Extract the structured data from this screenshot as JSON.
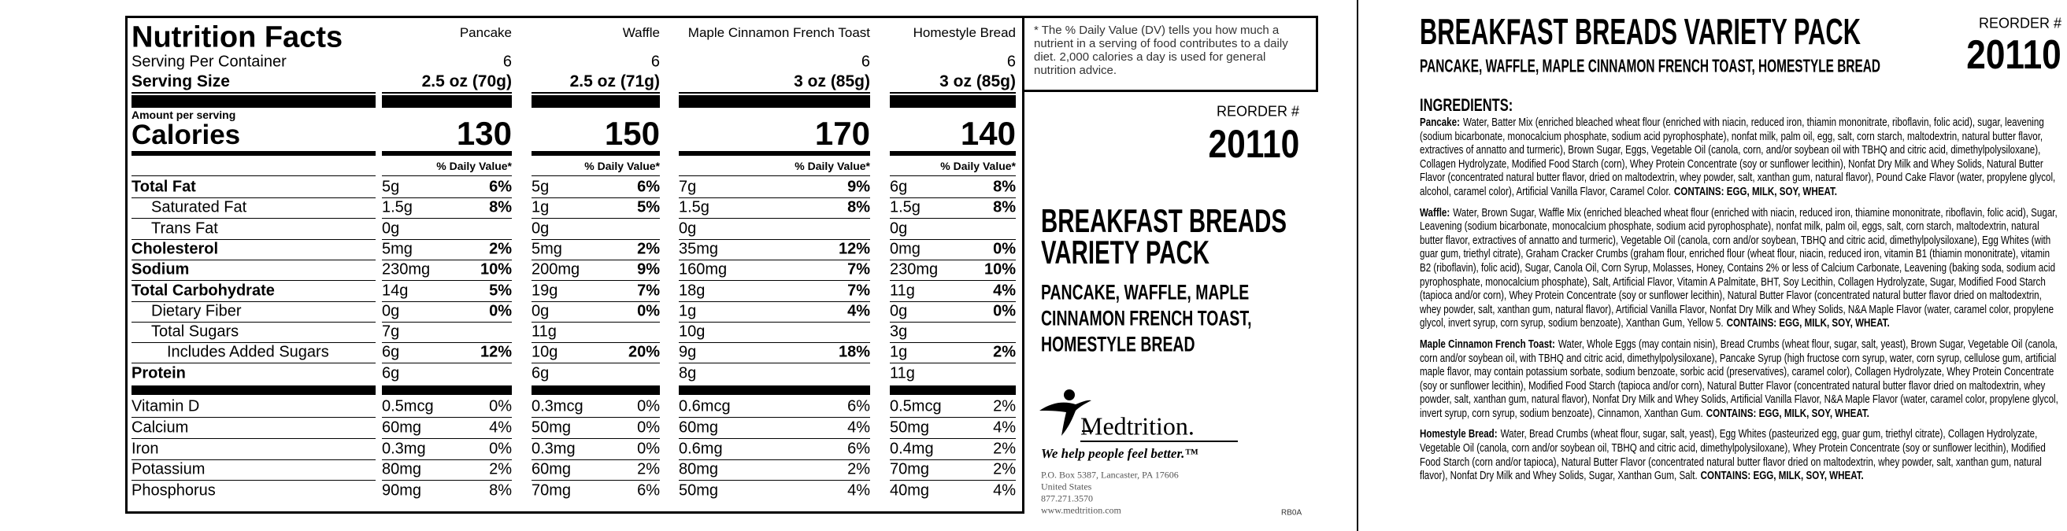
{
  "left_panel": {
    "nutrition_facts": {
      "title": "Nutrition Facts",
      "servings_label": "Serving Per Container",
      "serving_size_label": "Serving Size",
      "amount_label": "Amount per serving",
      "calories_label": "Calories",
      "daily_value_header": "% Daily Value*",
      "products": [
        {
          "name": "Pancake",
          "servings": 6,
          "serving_size": "2.5 oz (70g)",
          "calories": 130
        },
        {
          "name": "Waffle",
          "servings": 6,
          "serving_size": "2.5 oz (71g)",
          "calories": 150
        },
        {
          "name": "Maple Cinnamon French Toast",
          "servings": 6,
          "serving_size": "3 oz (85g)",
          "calories": 170
        },
        {
          "name": "Homestyle Bread",
          "servings": 6,
          "serving_size": "3 oz (85g)",
          "calories": 140
        }
      ],
      "nutrients": [
        {
          "label": "Total Fat",
          "values": [
            [
              "5g",
              "6%"
            ],
            [
              "5g",
              "6%"
            ],
            [
              "7g",
              "9%"
            ],
            [
              "6g",
              "8%"
            ]
          ]
        },
        {
          "label": "Saturated Fat",
          "values": [
            [
              "1.5g",
              "8%"
            ],
            [
              "1g",
              "5%"
            ],
            [
              "1.5g",
              "8%"
            ],
            [
              "1.5g",
              "8%"
            ]
          ]
        },
        {
          "label": "Trans Fat",
          "values": [
            [
              "0g"
            ],
            [
              "0g"
            ],
            [
              "0g"
            ],
            [
              "0g"
            ]
          ]
        },
        {
          "label": "Cholesterol",
          "values": [
            [
              "5mg",
              "2%"
            ],
            [
              "5mg",
              "2%"
            ],
            [
              "35mg",
              "12%"
            ],
            [
              "0mg",
              "0%"
            ]
          ]
        },
        {
          "label": "Sodium",
          "values": [
            [
              "230mg",
              "10%"
            ],
            [
              "200mg",
              "9%"
            ],
            [
              "160mg",
              "7%"
            ],
            [
              "230mg",
              "10%"
            ]
          ]
        },
        {
          "label": "Total Carbohydrate",
          "values": [
            [
              "14g",
              "5%"
            ],
            [
              "19g",
              "7%"
            ],
            [
              "18g",
              "7%"
            ],
            [
              "11g",
              "4%"
            ]
          ]
        },
        {
          "label": "Dietary Fiber",
          "values": [
            [
              "0g",
              "0%"
            ],
            [
              "0g",
              "0%"
            ],
            [
              "1g",
              "4%"
            ],
            [
              "0g",
              "0%"
            ]
          ]
        },
        {
          "label": "Total Sugars",
          "values": [
            [
              "7g"
            ],
            [
              "11g"
            ],
            [
              "10g"
            ],
            [
              "3g"
            ]
          ]
        },
        {
          "label": "Includes Added Sugars",
          "values": [
            [
              "6g",
              "12%"
            ],
            [
              "10g",
              "20%"
            ],
            [
              "9g",
              "18%"
            ],
            [
              "1g",
              "2%"
            ]
          ]
        },
        {
          "label": "Protein",
          "values": [
            [
              "6g"
            ],
            [
              "6g"
            ],
            [
              "8g"
            ],
            [
              "11g"
            ]
          ]
        }
      ],
      "vitamins_minerals": [
        {
          "label": "Vitamin D",
          "values": [
            [
              "0.5mcg",
              "0%"
            ],
            [
              "0.3mcg",
              "0%"
            ],
            [
              "0.6mcg",
              "6%"
            ],
            [
              "0.5mcg",
              "2%"
            ]
          ]
        },
        {
          "label": "Calcium",
          "values": [
            [
              "60mg",
              "4%"
            ],
            [
              "50mg",
              "0%"
            ],
            [
              "60mg",
              "4%"
            ],
            [
              "50mg",
              "4%"
            ]
          ]
        },
        {
          "label": "Iron",
          "values": [
            [
              "0.3mg",
              "0%"
            ],
            [
              "0.3mg",
              "0%"
            ],
            [
              "0.6mg",
              "6%"
            ],
            [
              "0.4mg",
              "2%"
            ]
          ]
        },
        {
          "label": "Potassium",
          "values": [
            [
              "80mg",
              "2%"
            ],
            [
              "60mg",
              "2%"
            ],
            [
              "80mg",
              "2%"
            ],
            [
              "70mg",
              "2%"
            ]
          ]
        },
        {
          "label": "Phosphorus",
          "values": [
            [
              "90mg",
              "8%"
            ],
            [
              "70mg",
              "6%"
            ],
            [
              "50mg",
              "4%"
            ],
            [
              "40mg",
              "4%"
            ]
          ]
        }
      ]
    },
    "disclaimer": "* The % Daily Value (DV) tells you how much a nutrient in a serving of food contributes to a daily diet. 2,000 calories a day is used for general nutrition advice.",
    "reorder_label": "REORDER #",
    "reorder_number": 20110,
    "title_lines": [
      "BREAKFAST BREADS",
      "VARIETY PACK"
    ],
    "subtitle_lines": [
      "PANCAKE, WAFFLE, MAPLE",
      "CINNAMON FRENCH TOAST,",
      "HOMESTYLE BREAD"
    ],
    "logo": {
      "name": "Medtrition.",
      "tagline": "We help people feel better.™"
    },
    "address_lines": [
      "P.O. Box 5387, Lancaster, PA 17606",
      "United States",
      "877.271.3570",
      "www.medtrition.com"
    ],
    "code": "RB0A"
  },
  "right_panel": {
    "title": "BREAKFAST BREADS VARIETY PACK",
    "subtitle": "PANCAKE, WAFFLE, MAPLE CINNAMON FRENCH TOAST, HOMESTYLE BREAD",
    "reorder_label": "REORDER #",
    "reorder_number": 20110,
    "ingredients_heading": "INGREDIENTS:",
    "ingredients": [
      {
        "name": "Pancake:",
        "text": "Water, Batter Mix (enriched bleached wheat flour (enriched with niacin, reduced iron, thiamin mononitrate, riboflavin, folic acid), sugar, leavening (sodium bicarbonate, monocalcium phosphate, sodium acid pyrophosphate), nonfat milk, palm oil, egg, salt, corn starch, maltodextrin, natural butter flavor, extractives of annatto and turmeric), Brown Sugar, Eggs, Vegetable Oil (canola, corn, and/or soybean oil with TBHQ and citric acid, dimethylpolysiloxane), Collagen Hydrolyzate, Modified Food Starch (corn), Whey Protein Concentrate (soy or sunflower lecithin), Nonfat Dry Milk and Whey Solids, Natural Butter Flavor (concentrated natural butter flavor, dried on maltodextrin, whey powder, salt, xanthan gum, natural flavor), Pound Cake Flavor (water, propylene glycol, alcohol, caramel color), Artificial Vanilla Flavor, Caramel Color.",
        "allergens": "CONTAINS: EGG, MILK, SOY, WHEAT."
      },
      {
        "name": "Waffle:",
        "text": "Water, Brown Sugar, Waffle Mix (enriched bleached wheat flour (enriched with niacin, reduced iron, thiamine mononitrate, riboflavin, folic acid), Sugar, Leavening (sodium bicarbonate, monocalcium phosphate, sodium acid pyrophosphate), nonfat milk, palm oil, eggs, salt, corn starch, maltodextrin, natural butter flavor, extractives of annatto and turmeric), Vegetable Oil (canola, corn and/or soybean, TBHQ and citric acid, dimethylpolysiloxane), Egg Whites (with guar gum, triethyl citrate), Graham Cracker Crumbs (graham flour, enriched flour (wheat flour, niacin, reduced iron, vitamin B1 (thiamin mononitrate), vitamin B2 (riboflavin), folic acid), Sugar, Canola Oil, Corn Syrup, Molasses, Honey, Contains 2% or less of Calcium Carbonate, Leavening (baking soda, sodium acid pyrophosphate, monocalcium phosphate), Salt, Artificial Flavor, Vitamin A Palmitate, BHT, Soy Lecithin, Collagen Hydrolyzate, Sugar, Modified Food Starch (tapioca and/or corn), Whey Protein Concentrate (soy or sunflower lecithin), Natural Butter Flavor (concentrated natural butter flavor dried on maltodextrin, whey powder, salt, xanthan gum, natural flavor), Artificial Vanilla Flavor, Nonfat Dry Milk and Whey Solids, N&A Maple Flavor (water, caramel color, propylene glycol, invert syrup, corn syrup, sodium benzoate), Xanthan Gum, Yellow 5.",
        "allergens": "CONTAINS: EGG, MILK, SOY, WHEAT."
      },
      {
        "name": "Maple Cinnamon French Toast:",
        "text": "Water, Whole Eggs (may contain nisin), Bread Crumbs (wheat flour, sugar, salt, yeast), Brown Sugar, Vegetable Oil (canola, corn and/or soybean oil, with TBHQ and citric acid, dimethylpolysiloxane), Pancake Syrup (high fructose corn syrup, water, corn syrup, cellulose gum, artificial maple flavor, may contain potassium sorbate, sodium benzoate, sorbic acid (preservatives), caramel color), Collagen Hydrolyzate, Whey Protein Concentrate (soy or sunflower lecithin), Modified Food Starch (tapioca and/or corn), Natural Butter Flavor (concentrated natural butter flavor dried on maltodextrin, whey powder, salt, xanthan gum, natural flavor), Nonfat Dry Milk and Whey Solids, Artificial Vanilla Flavor, N&A Maple Flavor (water, caramel color, propylene glycol, invert syrup, corn syrup, sodium benzoate), Cinnamon, Xanthan Gum.",
        "allergens": "CONTAINS: EGG, MILK, SOY, WHEAT."
      },
      {
        "name": "Homestyle Bread:",
        "text": "Water, Bread Crumbs (wheat flour, sugar, salt, yeast), Egg Whites (pasteurized egg, guar gum, triethyl citrate), Collagen Hydrolyzate, Vegetable Oil (canola, corn and/or soybean oil, TBHQ and citric acid, dimethylpolysiloxane), Whey Protein Concentrate (soy or sunflower lecithin), Modified Food Starch (corn and/or tapioca), Natural Butter Flavor (concentrated natural butter flavor dried on maltodextrin, whey powder, salt, xanthan gum, natural flavor), Nonfat Dry Milk and Whey Solids, Sugar, Xanthan Gum, Salt.",
        "allergens": "CONTAINS: EGG, MILK, SOY, WHEAT."
      }
    ]
  }
}
